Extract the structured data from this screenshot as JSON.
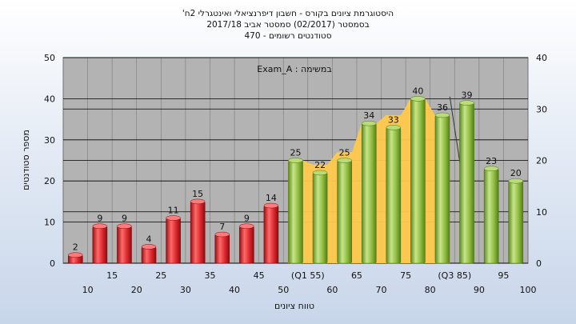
{
  "title_lines": [
    "'היסטוגרמת ציונים בקורס - חשבון דיפרנציאלי ואינטגרלי 2ח",
    "בסמסטר  (02/2017)  סמסטר אביב 2017/18",
    "סטודנטים רשומים - 470"
  ],
  "colors": {
    "plot_bg": "#b3b3b3",
    "fail_bar": "#d9262b",
    "pass_bar": "#8dbb3e",
    "band": "#ffc94d",
    "grid": "#000000"
  },
  "chart_data": {
    "type": "bar",
    "categories": [
      "10",
      "15",
      "20",
      "25",
      "30",
      "35",
      "40",
      "45",
      "50",
      "(Q1 55)",
      "60",
      "65",
      "70",
      "75",
      "80",
      "(Q3 85)",
      "90",
      "95",
      "100"
    ],
    "values": [
      2,
      9,
      9,
      4,
      11,
      15,
      7,
      9,
      14,
      25,
      22,
      25,
      34,
      33,
      40,
      36,
      39,
      23,
      20
    ],
    "pass_from_index": 9,
    "band": {
      "x_from": "(Q1 55)",
      "x_to": "(Q3 85)",
      "left_values": [
        25,
        22,
        25,
        34,
        33,
        40,
        36
      ],
      "right_values": [
        25,
        24,
        27,
        31,
        36,
        36,
        36
      ]
    },
    "annotation": "Exam_A : במשימה",
    "xlabel": "טווח ציונים",
    "ylabel": "מספר סטודנטים",
    "ylim": [
      0,
      50
    ],
    "yticks": [
      0,
      10,
      20,
      30,
      40,
      50
    ],
    "y2lim": [
      0,
      40
    ],
    "y2ticks": [
      0,
      10,
      20,
      30,
      40
    ],
    "grid": true
  }
}
